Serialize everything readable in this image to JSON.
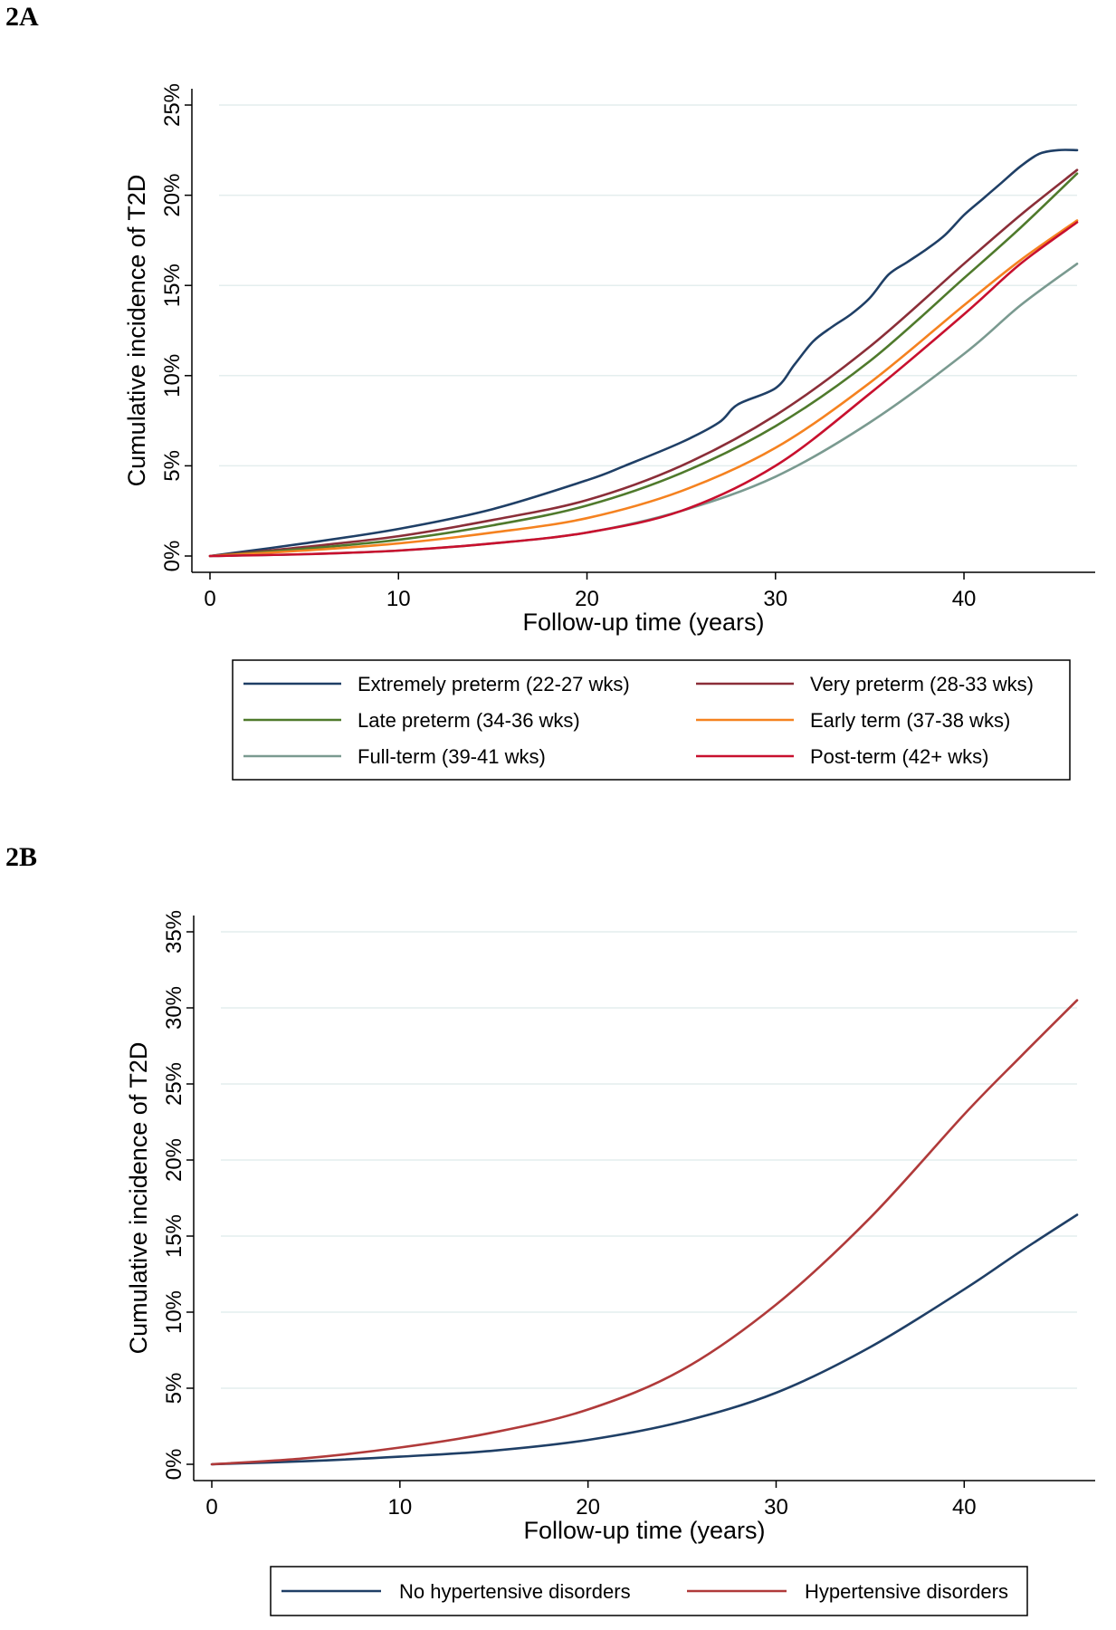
{
  "panel_labels": {
    "a": "2A",
    "b": "2B"
  },
  "chart_data": [
    {
      "type": "line",
      "panel": "2A",
      "title": "",
      "xlabel": "Follow-up time (years)",
      "ylabel": "Cumulative incidence of T2D",
      "xlim": [
        0,
        46
      ],
      "ylim": [
        0,
        25
      ],
      "xticks": [
        0,
        10,
        20,
        30,
        40
      ],
      "xtick_labels": [
        "0",
        "10",
        "20",
        "30",
        "40"
      ],
      "yticks": [
        0,
        5,
        10,
        15,
        20,
        25
      ],
      "ytick_labels": [
        "0%",
        "5%",
        "10%",
        "15%",
        "20%",
        "25%"
      ],
      "grid": true,
      "legend_position": "bottom",
      "series": [
        {
          "name": "Extremely preterm (22-27 wks)",
          "color": "#1f3f66",
          "x": [
            0,
            5,
            10,
            15,
            20,
            22,
            25,
            27,
            28,
            30,
            31,
            32,
            33,
            34,
            35,
            36,
            37,
            38,
            39,
            40,
            41,
            42,
            43,
            44,
            45,
            46
          ],
          "y": [
            0,
            0.7,
            1.5,
            2.6,
            4.2,
            5.0,
            6.3,
            7.4,
            8.4,
            9.3,
            10.6,
            11.9,
            12.7,
            13.4,
            14.3,
            15.6,
            16.3,
            17.0,
            17.8,
            18.9,
            19.8,
            20.7,
            21.6,
            22.3,
            22.5,
            22.5
          ]
        },
        {
          "name": "Very preterm (28-33 wks)",
          "color": "#8b2e38",
          "x": [
            0,
            5,
            10,
            15,
            20,
            25,
            30,
            35,
            40,
            43,
            46
          ],
          "y": [
            0,
            0.5,
            1.1,
            2.0,
            3.1,
            5.0,
            7.8,
            11.6,
            16.2,
            18.9,
            21.4
          ]
        },
        {
          "name": "Late preterm (34-36 wks)",
          "color": "#4f7a2c",
          "x": [
            0,
            5,
            10,
            15,
            20,
            25,
            30,
            35,
            40,
            43,
            46
          ],
          "y": [
            0,
            0.4,
            0.9,
            1.7,
            2.8,
            4.6,
            7.2,
            10.8,
            15.4,
            18.2,
            21.2
          ]
        },
        {
          "name": "Early term (37-38 wks)",
          "color": "#f58220",
          "x": [
            0,
            5,
            10,
            15,
            20,
            25,
            30,
            35,
            40,
            43,
            46
          ],
          "y": [
            0,
            0.3,
            0.7,
            1.3,
            2.1,
            3.6,
            6.0,
            9.6,
            13.9,
            16.4,
            18.6
          ]
        },
        {
          "name": "Full-term (39-41 wks)",
          "color": "#7a9a90",
          "x": [
            0,
            5,
            10,
            15,
            20,
            25,
            30,
            35,
            40,
            43,
            46
          ],
          "y": [
            0,
            0.1,
            0.3,
            0.7,
            1.3,
            2.5,
            4.4,
            7.4,
            11.2,
            13.9,
            16.2
          ]
        },
        {
          "name": "Post-term (42+ wks)",
          "color": "#c8102e",
          "x": [
            0,
            5,
            10,
            15,
            20,
            25,
            30,
            35,
            40,
            43,
            46
          ],
          "y": [
            0,
            0.1,
            0.3,
            0.7,
            1.3,
            2.5,
            5.0,
            9.0,
            13.4,
            16.2,
            18.5
          ]
        }
      ]
    },
    {
      "type": "line",
      "panel": "2B",
      "title": "",
      "xlabel": "Follow-up time (years)",
      "ylabel": "Cumulative incidence of T2D",
      "xlim": [
        0,
        46
      ],
      "ylim": [
        0,
        35
      ],
      "xticks": [
        0,
        10,
        20,
        30,
        40
      ],
      "xtick_labels": [
        "0",
        "10",
        "20",
        "30",
        "40"
      ],
      "yticks": [
        0,
        5,
        10,
        15,
        20,
        25,
        30,
        35
      ],
      "ytick_labels": [
        "0%",
        "5%",
        "10%",
        "15%",
        "20%",
        "25%",
        "30%",
        "35%"
      ],
      "grid": true,
      "legend_position": "bottom",
      "series": [
        {
          "name": "No hypertensive disorders",
          "color": "#1f3f66",
          "x": [
            0,
            5,
            10,
            15,
            20,
            25,
            30,
            35,
            40,
            43,
            46
          ],
          "y": [
            0,
            0.2,
            0.5,
            0.9,
            1.6,
            2.8,
            4.7,
            7.7,
            11.5,
            14.0,
            16.4
          ]
        },
        {
          "name": "Hypertensive disorders",
          "color": "#b03a3a",
          "x": [
            0,
            5,
            10,
            15,
            20,
            25,
            30,
            35,
            40,
            43,
            46
          ],
          "y": [
            0,
            0.4,
            1.1,
            2.1,
            3.6,
            6.2,
            10.5,
            16.2,
            23.0,
            26.8,
            30.5
          ]
        }
      ]
    }
  ]
}
